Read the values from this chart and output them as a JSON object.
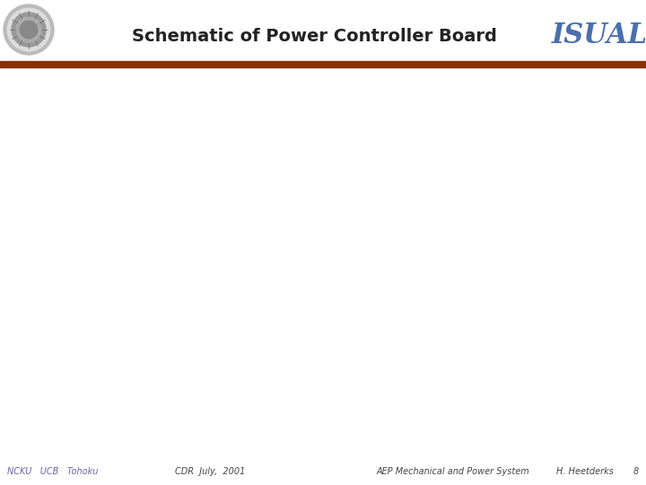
{
  "title": "Schematic of Power Controller Board",
  "isual_text": "ISUAL",
  "isual_color": "#4B6FAD",
  "background_color": "#FFFFFF",
  "header_bar_color": "#8B3000",
  "footer_text_left": "NCKU   UCB   Tohoku",
  "footer_text_center": "CDR  July,  2001",
  "footer_text_right": "AEP Mechanical and Power System",
  "footer_text_author": "H. Heetderks",
  "footer_page": "8",
  "footer_color": "#6666AA",
  "title_fontsize": 14,
  "isual_fontsize": 22,
  "footer_fontsize": 7
}
